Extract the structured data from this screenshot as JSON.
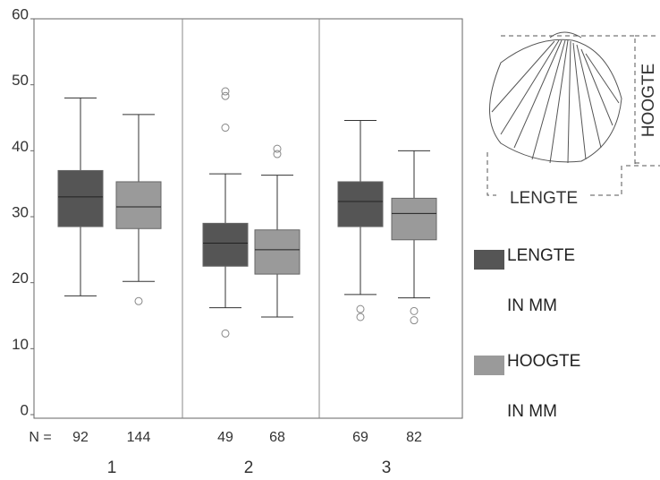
{
  "chart_data": {
    "type": "box",
    "categories": [
      "1",
      "2",
      "3"
    ],
    "n_label": "N =",
    "ylim": [
      0,
      60
    ],
    "yticks": [
      0,
      10,
      20,
      30,
      40,
      50,
      60
    ],
    "illustration_labels": {
      "width": "LENGTE",
      "height": "HOOGTE"
    },
    "series": [
      {
        "name": "LENGTE IN MM",
        "color": "#555555",
        "n": [
          92,
          49,
          69
        ],
        "stats": [
          {
            "whislo": 18,
            "q1": 28.5,
            "med": 33,
            "q3": 37,
            "whishi": 48,
            "fliers": []
          },
          {
            "whislo": 16.2,
            "q1": 22.5,
            "med": 26,
            "q3": 29,
            "whishi": 36.5,
            "fliers": [
              49,
              48.3,
              43.5,
              12.3
            ]
          },
          {
            "whislo": 18.2,
            "q1": 28.5,
            "med": 32.3,
            "q3": 35.3,
            "whishi": 44.6,
            "fliers": [
              16,
              14.8
            ]
          }
        ]
      },
      {
        "name": "HOOGTE IN MM",
        "color": "#9a9a9a",
        "n": [
          144,
          68,
          82
        ],
        "stats": [
          {
            "whislo": 20.2,
            "q1": 28.2,
            "med": 31.5,
            "q3": 35.3,
            "whishi": 45.5,
            "fliers": [
              17.2
            ]
          },
          {
            "whislo": 14.8,
            "q1": 21.3,
            "med": 25,
            "q3": 28,
            "whishi": 36.3,
            "fliers": [
              40.3,
              39.5
            ]
          },
          {
            "whislo": 17.7,
            "q1": 26.5,
            "med": 30.5,
            "q3": 32.8,
            "whishi": 40,
            "fliers": [
              15.7,
              14.3
            ]
          }
        ]
      }
    ]
  }
}
